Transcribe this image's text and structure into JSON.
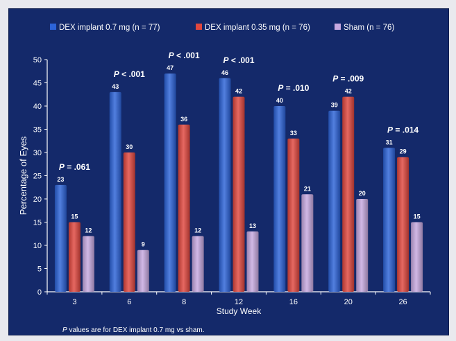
{
  "chart_data": {
    "type": "bar",
    "categories": [
      "3",
      "6",
      "8",
      "12",
      "16",
      "20",
      "26"
    ],
    "series": [
      {
        "name": "DEX implant 0.7 mg (n = 77)",
        "values": [
          23,
          43,
          47,
          46,
          40,
          39,
          31
        ],
        "color": "#2c63d8"
      },
      {
        "name": "DEX implant 0.35 mg (n = 76)",
        "values": [
          15,
          30,
          36,
          42,
          33,
          42,
          29
        ],
        "color": "#e0473e"
      },
      {
        "name": "Sham (n = 76)",
        "values": [
          12,
          9,
          12,
          13,
          21,
          20,
          15
        ],
        "color": "#c7a8e0"
      }
    ],
    "data_labels": [
      [
        "23",
        "43",
        "47",
        "46",
        "40",
        "39",
        "31"
      ],
      [
        "15",
        "30",
        "36",
        "42",
        "33",
        "42",
        "29"
      ],
      [
        "12",
        "9",
        "12",
        "13",
        "21",
        "20",
        "15"
      ]
    ],
    "p_values": [
      "P = .061",
      "P < .001",
      "P < .001",
      "P < .001",
      "P = .010",
      "P = .009",
      "P = .014"
    ],
    "xlabel": "Study Week",
    "ylabel": "Percentage of Eyes",
    "ylim": [
      0,
      50
    ],
    "yticks": [
      0,
      5,
      10,
      15,
      20,
      25,
      30,
      35,
      40,
      45,
      50
    ],
    "footnote": "P values are for DEX implant 0.7 mg vs sham.",
    "legend_position": "top",
    "grid": false,
    "colors": {
      "background": "#14296a",
      "text": "#ffffff",
      "axis": "#ffffff"
    }
  }
}
